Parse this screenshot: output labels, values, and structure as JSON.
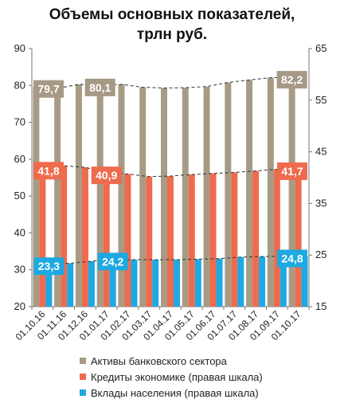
{
  "title_line1": "Объемы основных показателей,",
  "title_line2": "трлн руб.",
  "colors": {
    "assets": "#A89B85",
    "credits": "#EE6B4D",
    "deposits": "#1DA9E1",
    "assets_label": "#A69985",
    "credits_label": "#EE6B4D",
    "deposits_label": "#1DA9E1",
    "trend": "#333333"
  },
  "legend": [
    {
      "label": "Активы банковского сектора",
      "color_key": "assets"
    },
    {
      "label": "Кредиты экономике (правая шкала)",
      "color_key": "credits"
    },
    {
      "label": "Вклады населения  (правая шкала)",
      "color_key": "deposits"
    }
  ],
  "chart_data": {
    "type": "bar",
    "categories": [
      "01.10.16",
      "01.11.16",
      "01.12.16",
      "01.01.17",
      "01.02.17",
      "01.03.17",
      "01.04.17",
      "01.05.17",
      "01.06.17",
      "01.07.17",
      "01.08.17",
      "01.09.17",
      "01.10.17"
    ],
    "series": [
      {
        "name": "Активы банковского сектора",
        "axis": "left",
        "values": [
          79.7,
          79.2,
          80.3,
          80.1,
          80.3,
          79.5,
          79.3,
          79.4,
          79.7,
          80.8,
          81.5,
          82.1,
          82.2
        ]
      },
      {
        "name": "Кредиты экономике (правая шкала)",
        "axis": "right",
        "values": [
          41.8,
          42.3,
          42.0,
          40.9,
          40.7,
          40.2,
          40.3,
          40.6,
          40.8,
          41.0,
          41.3,
          41.6,
          41.7
        ]
      },
      {
        "name": "Вклады населения  (правая шкала)",
        "axis": "right",
        "values": [
          23.3,
          23.4,
          23.8,
          24.2,
          24.1,
          24.1,
          24.1,
          24.2,
          24.3,
          24.6,
          24.7,
          24.8,
          24.8
        ]
      }
    ],
    "data_labels": [
      {
        "series": 0,
        "index": 0,
        "text": "79,7"
      },
      {
        "series": 0,
        "index": 3,
        "text": "80,1"
      },
      {
        "series": 0,
        "index": 12,
        "text": "82,2"
      },
      {
        "series": 1,
        "index": 0,
        "text": "41,8"
      },
      {
        "series": 1,
        "index": 3,
        "text": "40,9"
      },
      {
        "series": 1,
        "index": 12,
        "text": "41,7"
      },
      {
        "series": 2,
        "index": 0,
        "text": "23,3"
      },
      {
        "series": 2,
        "index": 3,
        "text": "24,2"
      },
      {
        "series": 2,
        "index": 12,
        "text": "24,8"
      }
    ],
    "ylim_left": [
      20,
      90
    ],
    "yticks_left": [
      20,
      30,
      40,
      50,
      60,
      70,
      80,
      90
    ],
    "ylim_right": [
      15,
      65
    ],
    "yticks_right": [
      15,
      25,
      35,
      45,
      55,
      65
    ],
    "trendlines": "dashed",
    "grid": false,
    "legend_position": "bottom"
  }
}
